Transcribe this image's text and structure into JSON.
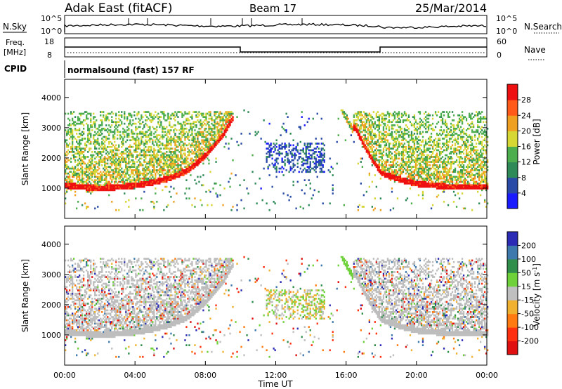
{
  "header": {
    "station": "Adak East (fitACF)",
    "beam": "Beam 17",
    "date": "25/Mar/2014"
  },
  "panels": {
    "noise": {
      "left_label": "N.Sky",
      "left_ticks": [
        "10^5",
        "10^0"
      ],
      "right_label": "N.Search",
      "right_ticks": [
        "10^5",
        "10^0"
      ]
    },
    "freq": {
      "left_label": "Freq.",
      "left_unit": "[MHz]",
      "left_ticks": [
        "18",
        "8"
      ],
      "right_label": "Nave",
      "right_ticks": [
        "60",
        "0"
      ]
    },
    "cpid": {
      "label": "CPID",
      "program": "normalsound (fast) 157 RF"
    }
  },
  "power_colorbar": {
    "label": "Power [dB]",
    "ticks": [
      "4",
      "8",
      "12",
      "16",
      "20",
      "24",
      "28"
    ],
    "colors": [
      "#1a1aff",
      "#2a4aa8",
      "#2e8b57",
      "#4cae4c",
      "#d6d635",
      "#f0a020",
      "#ff5a1a",
      "#ee1010"
    ]
  },
  "velocity_colorbar": {
    "label": "Velocity [m s^-1]",
    "ticks": [
      "200",
      "100",
      "50",
      "15",
      "-15",
      "-50",
      "-100",
      "-200"
    ],
    "colors": [
      "#2b2bb5",
      "#3e79ad",
      "#2f8f4a",
      "#6fd13a",
      "#bfbfbf",
      "#f0b030",
      "#ff7a10",
      "#ff3010",
      "#e01010"
    ]
  },
  "chart_data": [
    {
      "type": "heatmap",
      "name_in_image": "Power",
      "xlabel": "Time UT",
      "ylabel": "Slant Range [km]",
      "xlim": [
        0,
        24
      ],
      "ylim": [
        0,
        4600
      ],
      "xticks": [
        "00:00",
        "04:00",
        "08:00",
        "12:00",
        "16:00",
        "20:00",
        "00:00"
      ],
      "yticks": [
        1000,
        2000,
        3000,
        4000
      ],
      "colorbar": "Power [dB]",
      "ground_scatter_edge_km": [
        [
          0,
          1100
        ],
        [
          2,
          1000
        ],
        [
          4,
          1100
        ],
        [
          5,
          1200
        ],
        [
          6,
          1350
        ],
        [
          7,
          1600
        ],
        [
          8,
          2100
        ],
        [
          9,
          2800
        ],
        [
          9.5,
          3300
        ],
        [
          16.5,
          3000
        ],
        [
          17,
          2400
        ],
        [
          17.5,
          1900
        ],
        [
          18,
          1500
        ],
        [
          19,
          1300
        ],
        [
          20,
          1150
        ],
        [
          22,
          1050
        ],
        [
          24,
          1050
        ]
      ]
    },
    {
      "type": "heatmap",
      "name_in_image": "Velocity",
      "xlabel": "Time UT",
      "ylabel": "Slant Range [km]",
      "xlim": [
        0,
        24
      ],
      "ylim": [
        0,
        4600
      ],
      "xticks": [
        "00:00",
        "04:00",
        "08:00",
        "12:00",
        "16:00",
        "20:00",
        "00:00"
      ],
      "yticks": [
        1000,
        2000,
        3000,
        4000
      ],
      "colorbar": "Velocity [m s^-1]"
    }
  ]
}
